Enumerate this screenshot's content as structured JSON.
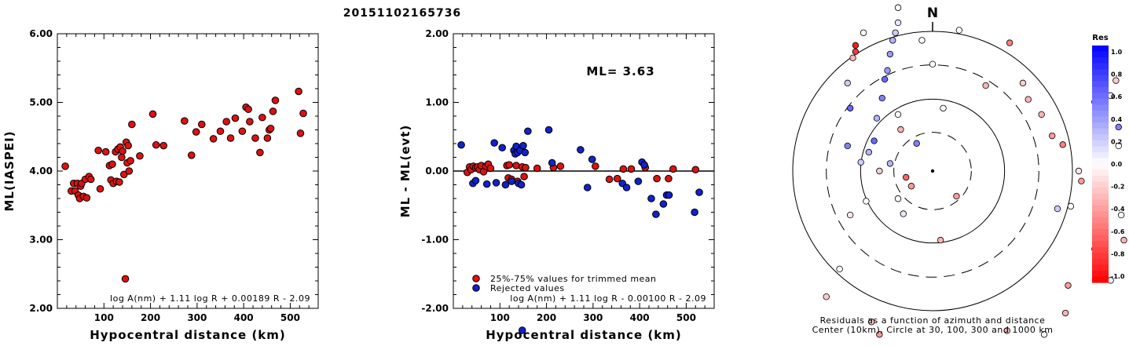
{
  "title": "20151102165736",
  "chart_data": [
    {
      "type": "scatter",
      "title": "",
      "xlabel": "Hypocentral distance (km)",
      "ylabel": "ML(IASPEI)",
      "xlim": [
        0,
        560
      ],
      "ylim": [
        2.0,
        6.0
      ],
      "xticks": [
        "100",
        "200",
        "300",
        "400",
        "500"
      ],
      "yticks": [
        "2.00",
        "3.00",
        "4.00",
        "5.00",
        "6.00"
      ],
      "formula": "log A(nm) + 1.11 log R + 0.00189 R - 2.09",
      "series": [
        {
          "color": "#dd1111",
          "points": [
            [
              17,
              4.07
            ],
            [
              30,
              3.71
            ],
            [
              35,
              3.82
            ],
            [
              38,
              3.71
            ],
            [
              43,
              3.82
            ],
            [
              45,
              3.65
            ],
            [
              48,
              3.6
            ],
            [
              50,
              3.78
            ],
            [
              52,
              3.82
            ],
            [
              56,
              3.63
            ],
            [
              60,
              3.88
            ],
            [
              63,
              3.61
            ],
            [
              68,
              3.92
            ],
            [
              72,
              3.88
            ],
            [
              88,
              4.3
            ],
            [
              92,
              3.74
            ],
            [
              104,
              4.28
            ],
            [
              112,
              4.08
            ],
            [
              115,
              3.87
            ],
            [
              118,
              4.1
            ],
            [
              120,
              3.82
            ],
            [
              125,
              4.28
            ],
            [
              127,
              3.85
            ],
            [
              130,
              4.32
            ],
            [
              133,
              3.84
            ],
            [
              135,
              4.35
            ],
            [
              138,
              4.2
            ],
            [
              140,
              4.29
            ],
            [
              143,
              3.95
            ],
            [
              146,
              2.43
            ],
            [
              148,
              4.42
            ],
            [
              150,
              4.12
            ],
            [
              152,
              4.37
            ],
            [
              154,
              4.0
            ],
            [
              157,
              4.15
            ],
            [
              160,
              4.68
            ],
            [
              177,
              4.22
            ],
            [
              205,
              4.83
            ],
            [
              212,
              4.38
            ],
            [
              228,
              4.37
            ],
            [
              273,
              4.73
            ],
            [
              288,
              4.23
            ],
            [
              298,
              4.57
            ],
            [
              310,
              4.68
            ],
            [
              335,
              4.47
            ],
            [
              350,
              4.58
            ],
            [
              363,
              4.72
            ],
            [
              372,
              4.48
            ],
            [
              382,
              4.77
            ],
            [
              397,
              4.58
            ],
            [
              405,
              4.93
            ],
            [
              410,
              4.9
            ],
            [
              413,
              4.72
            ],
            [
              425,
              4.48
            ],
            [
              435,
              4.27
            ],
            [
              440,
              4.78
            ],
            [
              451,
              4.48
            ],
            [
              455,
              4.6
            ],
            [
              458,
              4.62
            ],
            [
              463,
              4.87
            ],
            [
              468,
              5.03
            ],
            [
              518,
              5.16
            ],
            [
              522,
              4.55
            ],
            [
              528,
              4.84
            ]
          ]
        }
      ]
    },
    {
      "type": "scatter",
      "title": "",
      "xlabel": "Hypocentral distance (km)",
      "ylabel": "ML - ML(evt)",
      "xlim": [
        0,
        560
      ],
      "ylim": [
        -2.0,
        2.0
      ],
      "xticks": [
        "100",
        "200",
        "300",
        "400",
        "500"
      ],
      "yticks": [
        "-2.00",
        "-1.00",
        "0.00",
        "1.00",
        "2.00"
      ],
      "annotation": "ML=  3.63",
      "formula": "log A(nm) + 1.11 log R - 0.00100 R - 2.09",
      "legend": [
        "25%-75% values for trimmed mean",
        "Rejected values"
      ],
      "series": [
        {
          "name": "25%-75% values for trimmed mean",
          "color": "#dd1111",
          "points": [
            [
              30,
              -0.02
            ],
            [
              35,
              0.06
            ],
            [
              38,
              0.02
            ],
            [
              43,
              0.07
            ],
            [
              48,
              0.05
            ],
            [
              52,
              0.06
            ],
            [
              56,
              0.02
            ],
            [
              60,
              0.08
            ],
            [
              65,
              -0.01
            ],
            [
              70,
              0.07
            ],
            [
              75,
              0.1
            ],
            [
              80,
              0.04
            ],
            [
              115,
              0.08
            ],
            [
              118,
              -0.1
            ],
            [
              120,
              0.09
            ],
            [
              125,
              -0.12
            ],
            [
              135,
              0.08
            ],
            [
              138,
              -0.15
            ],
            [
              148,
              0.06
            ],
            [
              152,
              -0.08
            ],
            [
              155,
              0.05
            ],
            [
              180,
              0.04
            ],
            [
              215,
              0.05
            ],
            [
              230,
              0.07
            ],
            [
              305,
              0.07
            ],
            [
              335,
              -0.12
            ],
            [
              352,
              -0.11
            ],
            [
              365,
              0.03
            ],
            [
              382,
              0.03
            ],
            [
              412,
              0.05
            ],
            [
              437,
              -0.11
            ],
            [
              462,
              -0.11
            ],
            [
              472,
              0.03
            ],
            [
              520,
              0.02
            ]
          ]
        },
        {
          "name": "Rejected values",
          "color": "#1122cc",
          "points": [
            [
              17,
              0.38
            ],
            [
              42,
              -0.18
            ],
            [
              48,
              -0.14
            ],
            [
              72,
              -0.19
            ],
            [
              88,
              0.41
            ],
            [
              92,
              -0.17
            ],
            [
              105,
              0.34
            ],
            [
              112,
              -0.2
            ],
            [
              125,
              -0.15
            ],
            [
              130,
              0.3
            ],
            [
              133,
              0.25
            ],
            [
              135,
              0.36
            ],
            [
              138,
              0.27
            ],
            [
              140,
              -0.18
            ],
            [
              143,
              0.3
            ],
            [
              146,
              -0.2
            ],
            [
              148,
              -2.32
            ],
            [
              150,
              0.37
            ],
            [
              154,
              0.27
            ],
            [
              160,
              0.58
            ],
            [
              205,
              0.6
            ],
            [
              212,
              0.12
            ],
            [
              273,
              0.31
            ],
            [
              288,
              -0.24
            ],
            [
              298,
              0.17
            ],
            [
              363,
              -0.18
            ],
            [
              372,
              -0.24
            ],
            [
              397,
              -0.15
            ],
            [
              405,
              0.13
            ],
            [
              410,
              0.09
            ],
            [
              425,
              -0.4
            ],
            [
              435,
              -0.63
            ],
            [
              451,
              -0.48
            ],
            [
              458,
              -0.35
            ],
            [
              463,
              -0.35
            ],
            [
              518,
              -0.6
            ],
            [
              528,
              -0.31
            ]
          ]
        }
      ]
    },
    {
      "type": "scatter",
      "title": "",
      "caption_line1": "Residuals as a function of azimuth and distance",
      "caption_line2": "Center (10km), Circle at 30, 100, 300 and 1000 km",
      "north_label": "N",
      "colorbar_title": "Res",
      "colorbar_ticks": [
        "1.0",
        "0.8",
        "0.6",
        "0.4",
        "0.2",
        "0.0",
        "-0.2",
        "-0.4",
        "-0.6",
        "-0.8",
        "-1.0"
      ],
      "circles_km": [
        30,
        100,
        300,
        1000
      ],
      "stations": [
        [
          -10,
          -0.05,
          -0.6
        ],
        [
          -8,
          -0.12,
          -0.4
        ],
        [
          -6,
          0.22,
          0.5
        ],
        [
          -11,
          -0.34,
          0.1
        ],
        [
          -16,
          0.06,
          0.3
        ],
        [
          -13,
          -0.22,
          0.0
        ],
        [
          -20,
          0.0,
          -0.2
        ],
        [
          -13,
          0.45,
          0.0
        ],
        [
          -12,
          0.33,
          -0.3
        ],
        [
          -27,
          0.07,
          0.2
        ],
        [
          -24,
          0.15,
          0.3
        ],
        [
          -22,
          0.24,
          0.6
        ],
        [
          -21,
          0.42,
          0.3
        ],
        [
          -19,
          0.58,
          0.5
        ],
        [
          -18,
          0.73,
          0.6
        ],
        [
          -17,
          0.8,
          0.4
        ],
        [
          -16,
          0.93,
          0.4
        ],
        [
          -15,
          1.04,
          0.3
        ],
        [
          -14,
          1.1,
          0.2
        ],
        [
          -13,
          1.18,
          0.1
        ],
        [
          -13,
          1.3,
          0.0
        ],
        [
          -26,
          1.1,
          0.0
        ],
        [
          -29,
          1.0,
          -0.9
        ],
        [
          -29,
          0.95,
          -0.8
        ],
        [
          -30,
          0.9,
          -0.3
        ],
        [
          -32,
          0.7,
          0.2
        ],
        [
          -31,
          0.5,
          0.6
        ],
        [
          -32,
          0.2,
          0.5
        ],
        [
          -31,
          -0.35,
          -0.1
        ],
        [
          -25,
          -0.24,
          0.0
        ],
        [
          -35,
          -0.78,
          0.0
        ],
        [
          -40,
          -1.0,
          -0.2
        ],
        [
          -20,
          -1.3,
          -0.4
        ],
        [
          -23,
          -1.2,
          -0.2
        ],
        [
          3,
          -0.55,
          -0.3
        ],
        [
          9,
          -0.2,
          -0.4
        ],
        [
          4,
          0.5,
          0.0
        ],
        [
          0,
          0.85,
          0.0
        ],
        [
          -4,
          1.04,
          0.0
        ],
        [
          10,
          1.12,
          0.0
        ],
        [
          20,
          0.68,
          -0.3
        ],
        [
          29,
          1.02,
          -0.5
        ],
        [
          34,
          0.7,
          -0.2
        ],
        [
          36,
          0.57,
          -0.3
        ],
        [
          41,
          0.45,
          -0.3
        ],
        [
          45,
          0.28,
          -0.4
        ],
        [
          49,
          0.21,
          -0.5
        ],
        [
          55,
          0.0,
          -0.1
        ],
        [
          56,
          -0.08,
          -0.4
        ],
        [
          63,
          -0.2,
          -0.5
        ],
        [
          64,
          -0.28,
          0.0
        ],
        [
          61,
          0.55,
          0.1
        ],
        [
          67,
          0.6,
          0.0
        ],
        [
          70,
          0.35,
          0.5
        ],
        [
          70,
          0.2,
          0.0
        ],
        [
          78,
          0.4,
          0.1
        ],
        [
          76,
          0.62,
          0.5
        ],
        [
          69,
          0.72,
          -0.2
        ],
        [
          71,
          -0.35,
          0.0
        ],
        [
          72,
          -0.55,
          -0.3
        ],
        [
          61,
          -0.62,
          -0.1
        ],
        [
          51,
          -0.91,
          -0.4
        ],
        [
          67,
          -0.87,
          0.0
        ],
        [
          50,
          -1.13,
          -0.3
        ],
        [
          42,
          -1.3,
          0.0
        ],
        [
          28,
          -1.27,
          -0.3
        ],
        [
          -4,
          -1.42,
          -0.5
        ],
        [
          52,
          -0.28,
          0.0
        ],
        [
          47,
          -0.3,
          0.2
        ]
      ]
    }
  ]
}
